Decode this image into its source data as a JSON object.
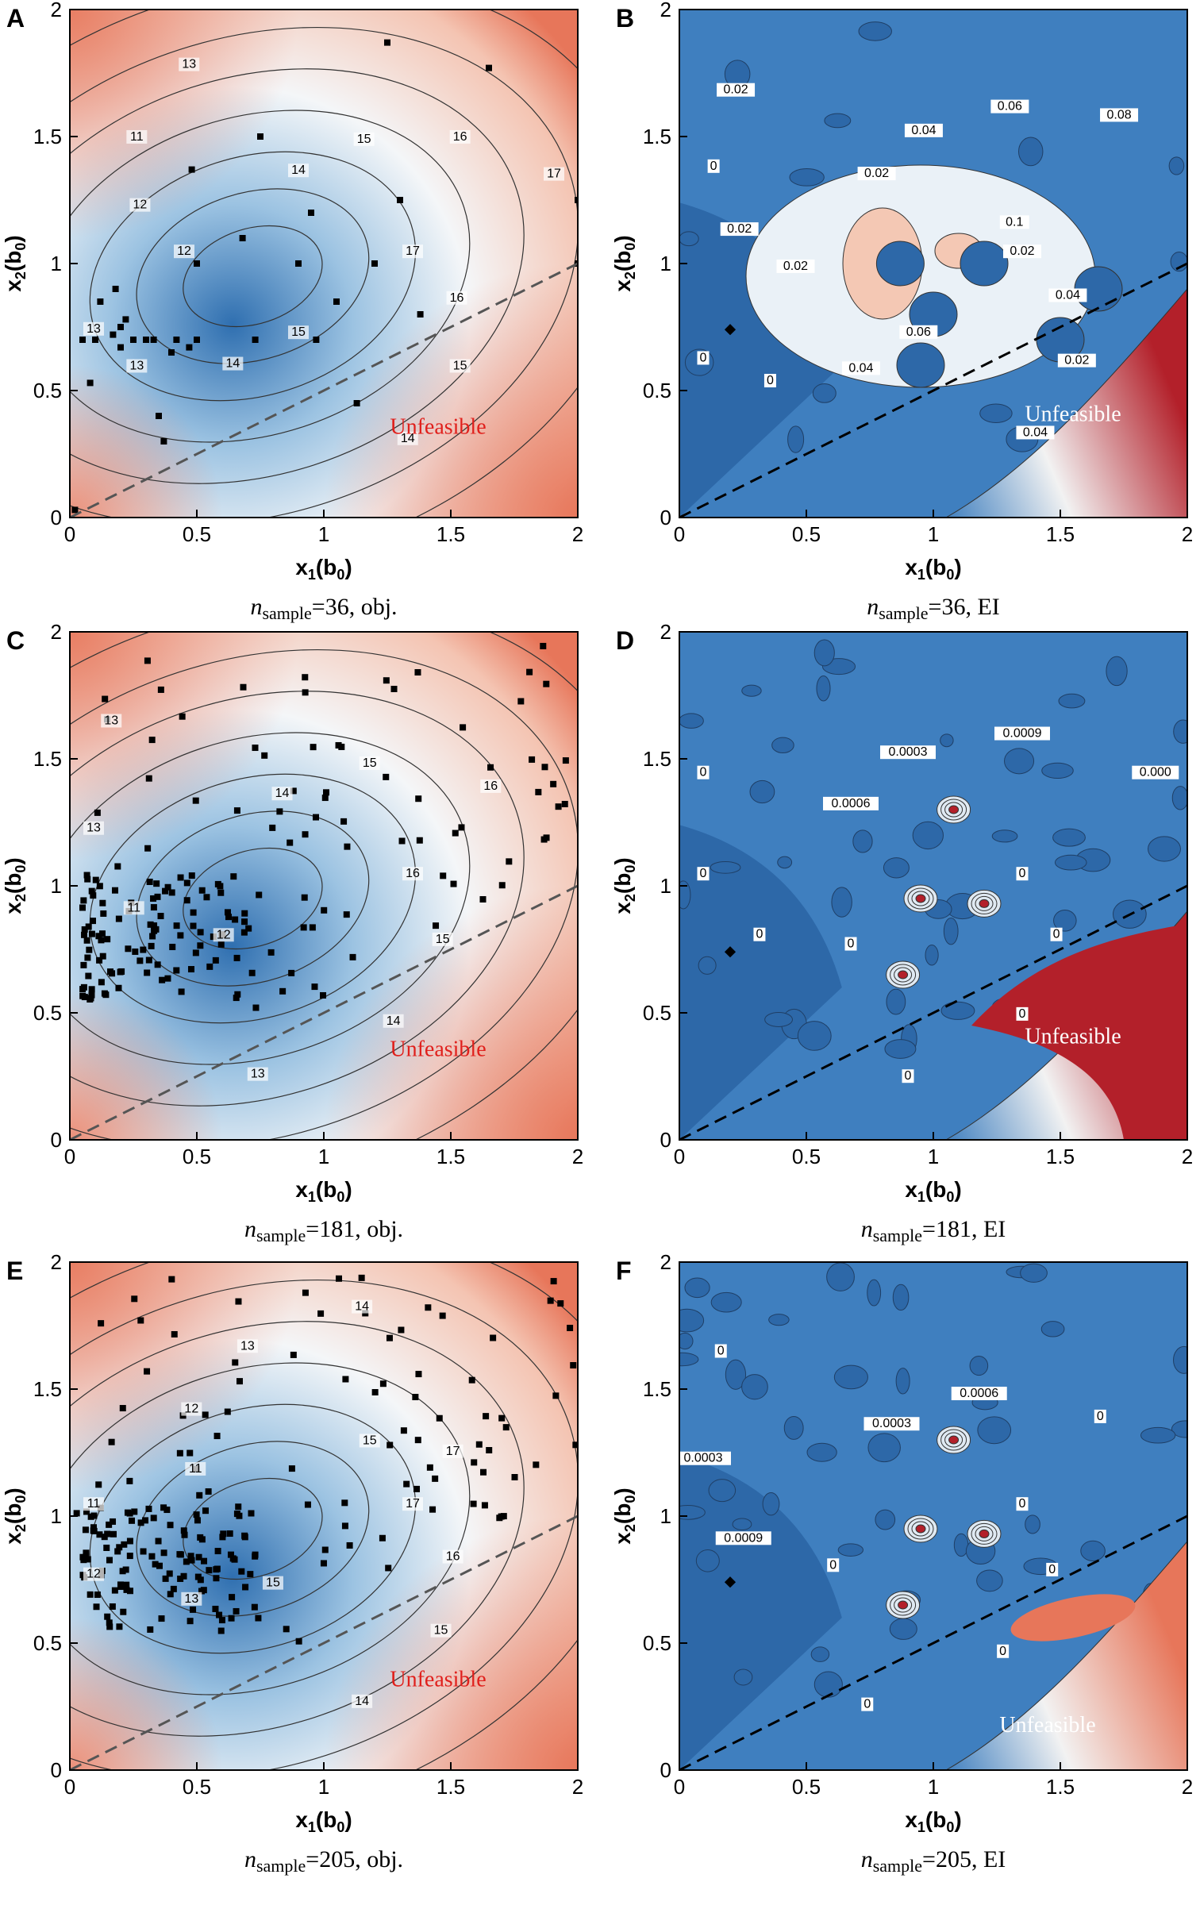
{
  "figure": {
    "panels": [
      {
        "letter": "A",
        "caption_n": "36",
        "caption_kind": "obj.",
        "kind": "obj",
        "unfeasible": "Unfeasible"
      },
      {
        "letter": "B",
        "caption_n": "36",
        "caption_kind": "EI",
        "kind": "ei",
        "unfeasible": "Unfeasible"
      },
      {
        "letter": "C",
        "caption_n": "181",
        "caption_kind": "obj.",
        "kind": "obj",
        "unfeasible": "Unfeasible"
      },
      {
        "letter": "D",
        "caption_n": "181",
        "caption_kind": "EI",
        "kind": "ei",
        "unfeasible": "Unfeasible"
      },
      {
        "letter": "E",
        "caption_n": "205",
        "caption_kind": "obj.",
        "kind": "obj",
        "unfeasible": "Unfeasible"
      },
      {
        "letter": "F",
        "caption_n": "205",
        "caption_kind": "EI",
        "kind": "ei",
        "unfeasible": "Unfeasible"
      }
    ],
    "caption_symbol": "n",
    "caption_subscript": "sample",
    "xlabel_main": "x",
    "xlabel_sub": "1",
    "xlabel_paren": "(b",
    "xlabel_paren_sub": "0",
    "ylabel_main": "x",
    "ylabel_sub": "2",
    "unfeasible_color_obj": "#e0201c",
    "unfeasible_color_ei": "#ffffff",
    "colors": {
      "low": "#2f6fb0",
      "mid": "#f4f6f8",
      "high": "#e7765a",
      "ei_base": "#3f7fbf",
      "ei_dark": "#2d68a8",
      "ei_high": "#b3202a"
    }
  },
  "chart_data": [
    {
      "panel": "A",
      "type": "heatmap",
      "title": "",
      "xlabel": "x1(b0)",
      "ylabel": "x2(b0)",
      "xlim": [
        0,
        2
      ],
      "ylim": [
        0,
        2
      ],
      "xticks": [
        "0",
        "0.5",
        "1",
        "1.5",
        "2"
      ],
      "yticks": [
        "0",
        "0.5",
        "1",
        "1.5",
        "2"
      ],
      "contour_labels": [
        "17",
        "16",
        "15",
        "14",
        "15",
        "14",
        "13",
        "13",
        "12",
        "12",
        "11",
        "13",
        "14",
        "15",
        "16",
        "17"
      ],
      "feasibility_line": [
        [
          0,
          0
        ],
        [
          2,
          1
        ]
      ],
      "samples": [
        [
          0.02,
          0.03
        ],
        [
          0.05,
          0.7
        ],
        [
          0.08,
          0.53
        ],
        [
          0.1,
          0.7
        ],
        [
          0.12,
          0.85
        ],
        [
          0.17,
          0.72
        ],
        [
          0.18,
          0.9
        ],
        [
          0.2,
          0.75
        ],
        [
          0.2,
          0.67
        ],
        [
          0.22,
          0.78
        ],
        [
          0.25,
          0.7
        ],
        [
          0.3,
          0.7
        ],
        [
          0.33,
          0.7
        ],
        [
          0.35,
          0.4
        ],
        [
          0.37,
          0.3
        ],
        [
          0.4,
          0.65
        ],
        [
          0.42,
          0.7
        ],
        [
          0.47,
          0.67
        ],
        [
          0.48,
          1.37
        ],
        [
          0.5,
          0.7
        ],
        [
          0.5,
          1.0
        ],
        [
          0.68,
          1.1
        ],
        [
          0.73,
          0.7
        ],
        [
          0.75,
          1.5
        ],
        [
          0.9,
          1.0
        ],
        [
          0.95,
          1.2
        ],
        [
          0.97,
          0.7
        ],
        [
          1.05,
          0.85
        ],
        [
          1.13,
          0.45
        ],
        [
          1.2,
          1.0
        ],
        [
          1.25,
          1.87
        ],
        [
          1.3,
          1.25
        ],
        [
          1.38,
          0.8
        ],
        [
          1.65,
          1.77
        ],
        [
          2.0,
          1.25
        ],
        [
          2.0,
          1.0
        ]
      ]
    },
    {
      "panel": "B",
      "type": "heatmap",
      "title": "",
      "xlabel": "x1(b0)",
      "ylabel": "x2(b0)",
      "xlim": [
        0,
        2
      ],
      "ylim": [
        0,
        2
      ],
      "xticks": [
        "0",
        "0.5",
        "1",
        "1.5",
        "2"
      ],
      "yticks": [
        "0",
        "0.5",
        "1",
        "1.5",
        "2"
      ],
      "contour_labels": [
        "0.02",
        "0.04",
        "0.02",
        "0.04",
        "0.06",
        "0.04",
        "0",
        "0",
        "0.02",
        "0.02",
        "0",
        "0.02",
        "0.02",
        "0.04",
        "0.06",
        "0.08",
        "0.1"
      ],
      "feasibility_line": [
        [
          0,
          0
        ],
        [
          2,
          1
        ]
      ]
    },
    {
      "panel": "C",
      "type": "heatmap",
      "title": "",
      "xlabel": "x1(b0)",
      "ylabel": "x2(b0)",
      "xlim": [
        0,
        2
      ],
      "ylim": [
        0,
        2
      ],
      "xticks": [
        "0",
        "0.5",
        "1",
        "1.5",
        "2"
      ],
      "yticks": [
        "0",
        "0.5",
        "1",
        "1.5",
        "2"
      ],
      "contour_labels": [
        "16",
        "15",
        "14",
        "13",
        "12",
        "11",
        "13",
        "13",
        "14",
        "15",
        "16"
      ],
      "feasibility_line": [
        [
          0,
          0
        ],
        [
          2,
          1
        ]
      ]
    },
    {
      "panel": "D",
      "type": "heatmap",
      "title": "",
      "xlabel": "x1(b0)",
      "ylabel": "x2(b0)",
      "xlim": [
        0,
        2
      ],
      "ylim": [
        0,
        2
      ],
      "xticks": [
        "0",
        "0.5",
        "1",
        "1.5",
        "2"
      ],
      "yticks": [
        "0",
        "0.5",
        "1",
        "1.5",
        "2"
      ],
      "contour_labels": [
        "0",
        "0",
        "0",
        "0",
        "0",
        "0",
        "0",
        "0",
        "0.0006",
        "0.0003",
        "0.0009",
        "0.000"
      ],
      "feasibility_line": [
        [
          0,
          0
        ],
        [
          2,
          1
        ]
      ]
    },
    {
      "panel": "E",
      "type": "heatmap",
      "title": "",
      "xlabel": "x1(b0)",
      "ylabel": "x2(b0)",
      "xlim": [
        0,
        2
      ],
      "ylim": [
        0,
        2
      ],
      "xticks": [
        "0",
        "0.5",
        "1",
        "1.5",
        "2"
      ],
      "yticks": [
        "0",
        "0.5",
        "1",
        "1.5",
        "2"
      ],
      "contour_labels": [
        "17",
        "16",
        "15",
        "14",
        "15",
        "13",
        "12",
        "11",
        "11",
        "12",
        "13",
        "14",
        "15",
        "17"
      ],
      "feasibility_line": [
        [
          0,
          0
        ],
        [
          2,
          1
        ]
      ]
    },
    {
      "panel": "F",
      "type": "heatmap",
      "title": "",
      "xlabel": "x1(b0)",
      "ylabel": "x2(b0)",
      "xlim": [
        0,
        2
      ],
      "ylim": [
        0,
        2
      ],
      "xticks": [
        "0",
        "0.5",
        "1",
        "1.5",
        "2"
      ],
      "yticks": [
        "0",
        "0.5",
        "1",
        "1.5",
        "2"
      ],
      "contour_labels": [
        "0",
        "0",
        "0",
        "0",
        "0",
        "0.0009",
        "0.0003",
        "0",
        "0.0003",
        "0.0006",
        "0"
      ],
      "feasibility_line": [
        [
          0,
          0
        ],
        [
          2,
          1
        ]
      ]
    }
  ]
}
